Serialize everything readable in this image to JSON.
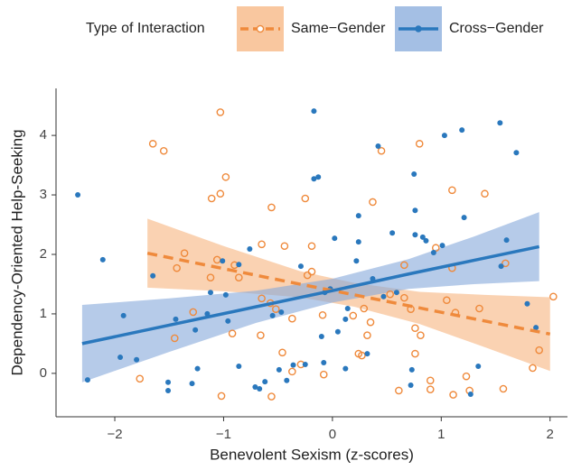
{
  "chart_data": {
    "type": "scatter",
    "xlabel": "Benevolent Sexism (z-scores)",
    "ylabel": "Dependency-Oriented Help-Seeking",
    "legend_title": "Type of Interaction",
    "legend": "top",
    "grid": false,
    "xlim": [
      -2.54,
      2.16
    ],
    "ylim": [
      -0.73,
      4.76
    ],
    "xticks": [
      {
        "value": -2,
        "label": "−2"
      },
      {
        "value": -1,
        "label": "−1"
      },
      0,
      1,
      2
    ],
    "yticks": [
      0,
      1,
      2,
      3,
      4
    ],
    "series": [
      {
        "name": "Same−Gender",
        "color": "#ef8a3c",
        "band_color": "#f7b47f",
        "marker": "open",
        "line_style": "dashed",
        "x": [
          -1.65,
          -1.55,
          -1.03,
          -0.98,
          -1.03,
          -1.11,
          -0.56,
          -0.25,
          0.37,
          0.45,
          0.8,
          1.1,
          1.4,
          -1.36,
          -1.43,
          -1.06,
          -0.9,
          -0.86,
          -0.65,
          -0.44,
          -0.19,
          -0.19,
          -0.23,
          -1.12,
          -0.65,
          -0.57,
          -0.52,
          -1.28,
          -0.92,
          -0.66,
          -0.37,
          -1.45,
          -1.77,
          -1.02,
          -0.56,
          -0.46,
          -0.37,
          -0.29,
          -0.08,
          -0.09,
          0.29,
          0.19,
          0.35,
          0.24,
          0.27,
          0.32,
          0.66,
          0.66,
          0.53,
          0.61,
          0.76,
          0.76,
          0.81,
          0.72,
          0.95,
          1.05,
          1.1,
          1.13,
          0.9,
          0.9,
          1.11,
          1.26,
          1.23,
          1.35,
          1.57,
          1.59,
          1.84,
          1.9,
          2.03
        ],
        "values": [
          3.86,
          3.74,
          4.39,
          3.3,
          3.02,
          2.94,
          2.79,
          2.94,
          2.88,
          3.74,
          3.86,
          3.08,
          3.02,
          2.02,
          1.77,
          1.91,
          1.82,
          1.61,
          2.17,
          2.14,
          2.14,
          1.71,
          1.65,
          1.61,
          1.26,
          1.18,
          1.08,
          1.03,
          0.67,
          0.64,
          0.92,
          0.59,
          -0.09,
          -0.38,
          -0.39,
          0.35,
          0.03,
          0.15,
          -0.02,
          0.98,
          1.09,
          0.97,
          0.86,
          0.33,
          0.3,
          0.64,
          1.27,
          1.82,
          1.33,
          -0.29,
          0.33,
          0.76,
          0.64,
          1.08,
          2.11,
          1.23,
          1.77,
          1.02,
          -0.12,
          -0.27,
          -0.36,
          -0.29,
          -0.05,
          1.09,
          -0.26,
          1.85,
          0.09,
          0.39,
          1.29
        ],
        "fit": {
          "x": [
            -1.7,
            -1.0,
            -0.3,
            0.2,
            0.8,
            1.4,
            2.0
          ],
          "values": [
            2.02,
            1.76,
            1.5,
            1.32,
            1.1,
            0.88,
            0.66
          ],
          "lower": [
            1.44,
            1.38,
            1.28,
            1.12,
            0.83,
            0.44,
            0.04
          ],
          "upper": [
            2.6,
            2.14,
            1.72,
            1.52,
            1.37,
            1.32,
            1.28
          ]
        }
      },
      {
        "name": "Cross−Gender",
        "color": "#2a78bd",
        "band_color": "#86a9db",
        "marker": "filled",
        "line_style": "solid",
        "x": [
          -2.34,
          -2.25,
          -2.11,
          -1.95,
          -1.8,
          -1.92,
          -1.65,
          -1.51,
          -1.51,
          -1.44,
          -1.29,
          -1.26,
          -1.24,
          -1.12,
          -1.15,
          -1.01,
          -0.98,
          -0.96,
          -0.86,
          -0.86,
          -0.76,
          -0.71,
          -0.67,
          -0.62,
          -0.55,
          -0.49,
          -0.47,
          -0.42,
          -0.36,
          -0.29,
          -0.25,
          -0.17,
          -0.17,
          -0.13,
          -0.1,
          -0.08,
          -0.07,
          -0.02,
          0.02,
          0.05,
          0.12,
          0.12,
          0.14,
          0.22,
          0.24,
          0.24,
          0.32,
          0.37,
          0.42,
          0.47,
          0.55,
          0.59,
          0.73,
          0.72,
          0.76,
          0.75,
          0.76,
          0.83,
          0.86,
          0.93,
          1.01,
          1.03,
          1.19,
          1.21,
          1.27,
          1.34,
          1.54,
          1.55,
          1.6,
          1.69,
          1.79,
          1.87
        ],
        "values": [
          3.0,
          -0.11,
          1.91,
          0.27,
          0.23,
          0.97,
          1.64,
          -0.15,
          -0.29,
          0.91,
          -0.17,
          0.73,
          0.08,
          1.36,
          1.0,
          1.89,
          1.32,
          0.88,
          0.12,
          1.83,
          2.09,
          -0.23,
          -0.26,
          -0.14,
          0.97,
          0.06,
          1.03,
          -0.12,
          0.14,
          1.8,
          0.15,
          4.41,
          3.27,
          3.3,
          0.62,
          0.18,
          1.36,
          1.42,
          2.27,
          0.7,
          0.08,
          0.91,
          1.09,
          1.89,
          2.65,
          2.21,
          0.33,
          1.59,
          3.82,
          1.29,
          2.36,
          1.36,
          0.06,
          -0.2,
          2.74,
          3.35,
          2.33,
          2.29,
          2.23,
          2.03,
          2.15,
          4.0,
          4.09,
          2.62,
          -0.35,
          0.12,
          4.21,
          1.8,
          2.24,
          3.71,
          1.17,
          0.77
        ],
        "fit": {
          "x": [
            -2.3,
            -1.5,
            -0.7,
            0.0,
            0.7,
            1.3,
            1.9
          ],
          "values": [
            0.5,
            0.81,
            1.12,
            1.39,
            1.67,
            1.9,
            2.13
          ],
          "lower": [
            -0.15,
            0.36,
            0.85,
            1.19,
            1.42,
            1.5,
            1.55
          ],
          "upper": [
            1.15,
            1.26,
            1.39,
            1.59,
            1.92,
            2.3,
            2.71
          ]
        }
      }
    ]
  }
}
